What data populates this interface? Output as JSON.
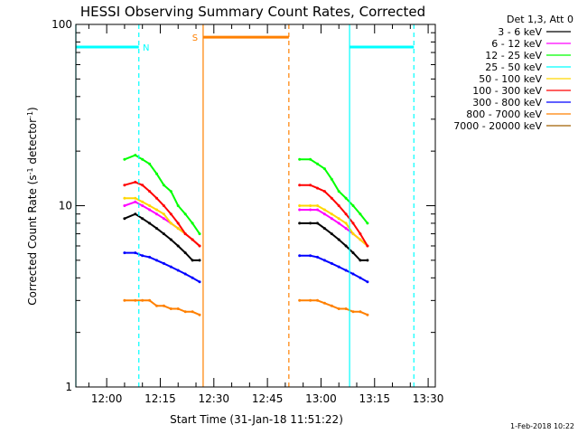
{
  "chart_data": {
    "type": "line",
    "title": "HESSI Observing Summary Count Rates, Corrected",
    "xlabel": "Start Time (31-Jan-18 11:51:22)",
    "ylabel": "Corrected Count Rate (s⁻¹ detector⁻¹)",
    "yscale": "log",
    "ylim": [
      1,
      100
    ],
    "xlim": [
      "11:51:22",
      "13:32:00"
    ],
    "x_ticks": [
      "12:00",
      "12:15",
      "12:30",
      "12:45",
      "13:00",
      "13:15",
      "13:30"
    ],
    "y_ticks": [
      "1",
      "10",
      "100"
    ],
    "grid": false,
    "legend_position": "top-right",
    "legend_header": "Det 1,3, Att 0",
    "timestamp": "1-Feb-2018 10:22",
    "series": [
      {
        "name": "3 - 6 keV",
        "color": "#000000",
        "segments": [
          {
            "x": [
              "12:05",
              "12:08",
              "12:10",
              "12:12",
              "12:14",
              "12:16",
              "12:18",
              "12:20",
              "12:22",
              "12:24",
              "12:26"
            ],
            "y": [
              8.5,
              9,
              8.5,
              8,
              7.5,
              7,
              6.5,
              6,
              5.5,
              5,
              5
            ]
          },
          {
            "x": [
              "12:54",
              "12:57",
              "12:59",
              "13:01",
              "13:03",
              "13:05",
              "13:07",
              "13:09",
              "13:11",
              "13:13"
            ],
            "y": [
              8,
              8,
              8,
              7.5,
              7,
              6.5,
              6,
              5.5,
              5,
              5
            ]
          }
        ]
      },
      {
        "name": "6 - 12 keV",
        "color": "#ff00ff",
        "segments": [
          {
            "x": [
              "12:05",
              "12:08",
              "12:10",
              "12:12",
              "12:14",
              "12:16",
              "12:18",
              "12:20",
              "12:22",
              "12:24",
              "12:26"
            ],
            "y": [
              10,
              10.5,
              10,
              9.5,
              9,
              8.5,
              8,
              7.5,
              7,
              6.5,
              6
            ]
          },
          {
            "x": [
              "12:54",
              "12:57",
              "12:59",
              "13:01",
              "13:03",
              "13:05",
              "13:07",
              "13:09",
              "13:11",
              "13:13"
            ],
            "y": [
              9.5,
              9.5,
              9.5,
              9,
              8.5,
              8,
              7.5,
              7,
              6.5,
              6
            ]
          }
        ]
      },
      {
        "name": "12 - 25 keV",
        "color": "#00ff00",
        "segments": [
          {
            "x": [
              "12:05",
              "12:08",
              "12:10",
              "12:12",
              "12:14",
              "12:16",
              "12:18",
              "12:20",
              "12:22",
              "12:24",
              "12:26"
            ],
            "y": [
              18,
              19,
              18,
              17,
              15,
              13,
              12,
              10,
              9,
              8,
              7
            ]
          },
          {
            "x": [
              "12:54",
              "12:57",
              "12:59",
              "13:01",
              "13:03",
              "13:05",
              "13:07",
              "13:09",
              "13:11",
              "13:13"
            ],
            "y": [
              18,
              18,
              17,
              16,
              14,
              12,
              11,
              10,
              9,
              8
            ]
          }
        ]
      },
      {
        "name": "25 - 50 keV",
        "color": "#00ffff",
        "segments": []
      },
      {
        "name": "50 - 100 keV",
        "color": "#ffd700",
        "segments": [
          {
            "x": [
              "12:05",
              "12:08",
              "12:10",
              "12:12",
              "12:14",
              "12:16",
              "12:18",
              "12:20",
              "12:22",
              "12:24",
              "12:26"
            ],
            "y": [
              11,
              11,
              10.5,
              10,
              9.5,
              9,
              8,
              7.5,
              7,
              6.5,
              6
            ]
          },
          {
            "x": [
              "12:54",
              "12:57",
              "12:59",
              "13:01",
              "13:03",
              "13:05",
              "13:07",
              "13:09",
              "13:11",
              "13:13"
            ],
            "y": [
              10,
              10,
              10,
              9.5,
              9,
              8.5,
              8,
              7,
              6.5,
              6
            ]
          }
        ]
      },
      {
        "name": "100 - 300 keV",
        "color": "#ff0000",
        "segments": [
          {
            "x": [
              "12:05",
              "12:08",
              "12:10",
              "12:12",
              "12:14",
              "12:16",
              "12:18",
              "12:20",
              "12:22",
              "12:24",
              "12:26"
            ],
            "y": [
              13,
              13.5,
              13,
              12,
              11,
              10,
              9,
              8,
              7,
              6.5,
              6
            ]
          },
          {
            "x": [
              "12:54",
              "12:57",
              "12:59",
              "13:01",
              "13:03",
              "13:05",
              "13:07",
              "13:09",
              "13:11",
              "13:13"
            ],
            "y": [
              13,
              13,
              12.5,
              12,
              11,
              10,
              9,
              8,
              7,
              6
            ]
          }
        ]
      },
      {
        "name": "300 - 800 keV",
        "color": "#0000ff",
        "segments": [
          {
            "x": [
              "12:05",
              "12:08",
              "12:10",
              "12:12",
              "12:14",
              "12:16",
              "12:18",
              "12:20",
              "12:22",
              "12:24",
              "12:26"
            ],
            "y": [
              5.5,
              5.5,
              5.3,
              5.2,
              5,
              4.8,
              4.6,
              4.4,
              4.2,
              4,
              3.8
            ]
          },
          {
            "x": [
              "12:54",
              "12:57",
              "12:59",
              "13:01",
              "13:03",
              "13:05",
              "13:07",
              "13:09",
              "13:11",
              "13:13"
            ],
            "y": [
              5.3,
              5.3,
              5.2,
              5,
              4.8,
              4.6,
              4.4,
              4.2,
              4,
              3.8
            ]
          }
        ]
      },
      {
        "name": "800 - 7000 keV",
        "color": "#ff8000",
        "segments": [
          {
            "x": [
              "12:05",
              "12:08",
              "12:10",
              "12:12",
              "12:14",
              "12:16",
              "12:18",
              "12:20",
              "12:22",
              "12:24",
              "12:26"
            ],
            "y": [
              3,
              3,
              3,
              3,
              2.8,
              2.8,
              2.7,
              2.7,
              2.6,
              2.6,
              2.5
            ]
          },
          {
            "x": [
              "12:54",
              "12:57",
              "12:59",
              "13:01",
              "13:03",
              "13:05",
              "13:07",
              "13:09",
              "13:11",
              "13:13"
            ],
            "y": [
              3,
              3,
              3,
              2.9,
              2.8,
              2.7,
              2.7,
              2.6,
              2.6,
              2.5
            ]
          }
        ]
      },
      {
        "name": "7000 - 20000 keV",
        "color": "#a06000",
        "segments": []
      }
    ],
    "annotations": [
      {
        "type": "flag_bar",
        "label": "N",
        "color": "#00ffff",
        "x_start": "11:51:22",
        "x_end": "12:09",
        "y": 75
      },
      {
        "type": "flag_bar",
        "label": "",
        "color": "#00ffff",
        "x_start": "13:08",
        "x_end": "13:26",
        "y": 75
      },
      {
        "type": "flag_bar",
        "label": "S",
        "color": "#ff8000",
        "x_start": "12:27",
        "x_end": "12:51",
        "y": 85
      },
      {
        "type": "vline",
        "color": "#00ffff",
        "style": "solid",
        "x": "11:51:22"
      },
      {
        "type": "vline",
        "color": "#00ffff",
        "style": "dashed",
        "x": "12:09"
      },
      {
        "type": "vline",
        "color": "#ff8000",
        "style": "solid",
        "x": "12:27"
      },
      {
        "type": "vline",
        "color": "#ff8000",
        "style": "dashed",
        "x": "12:51"
      },
      {
        "type": "vline",
        "color": "#00ffff",
        "style": "solid",
        "x": "13:08"
      },
      {
        "type": "vline",
        "color": "#00ffff",
        "style": "dashed",
        "x": "13:26"
      }
    ]
  }
}
